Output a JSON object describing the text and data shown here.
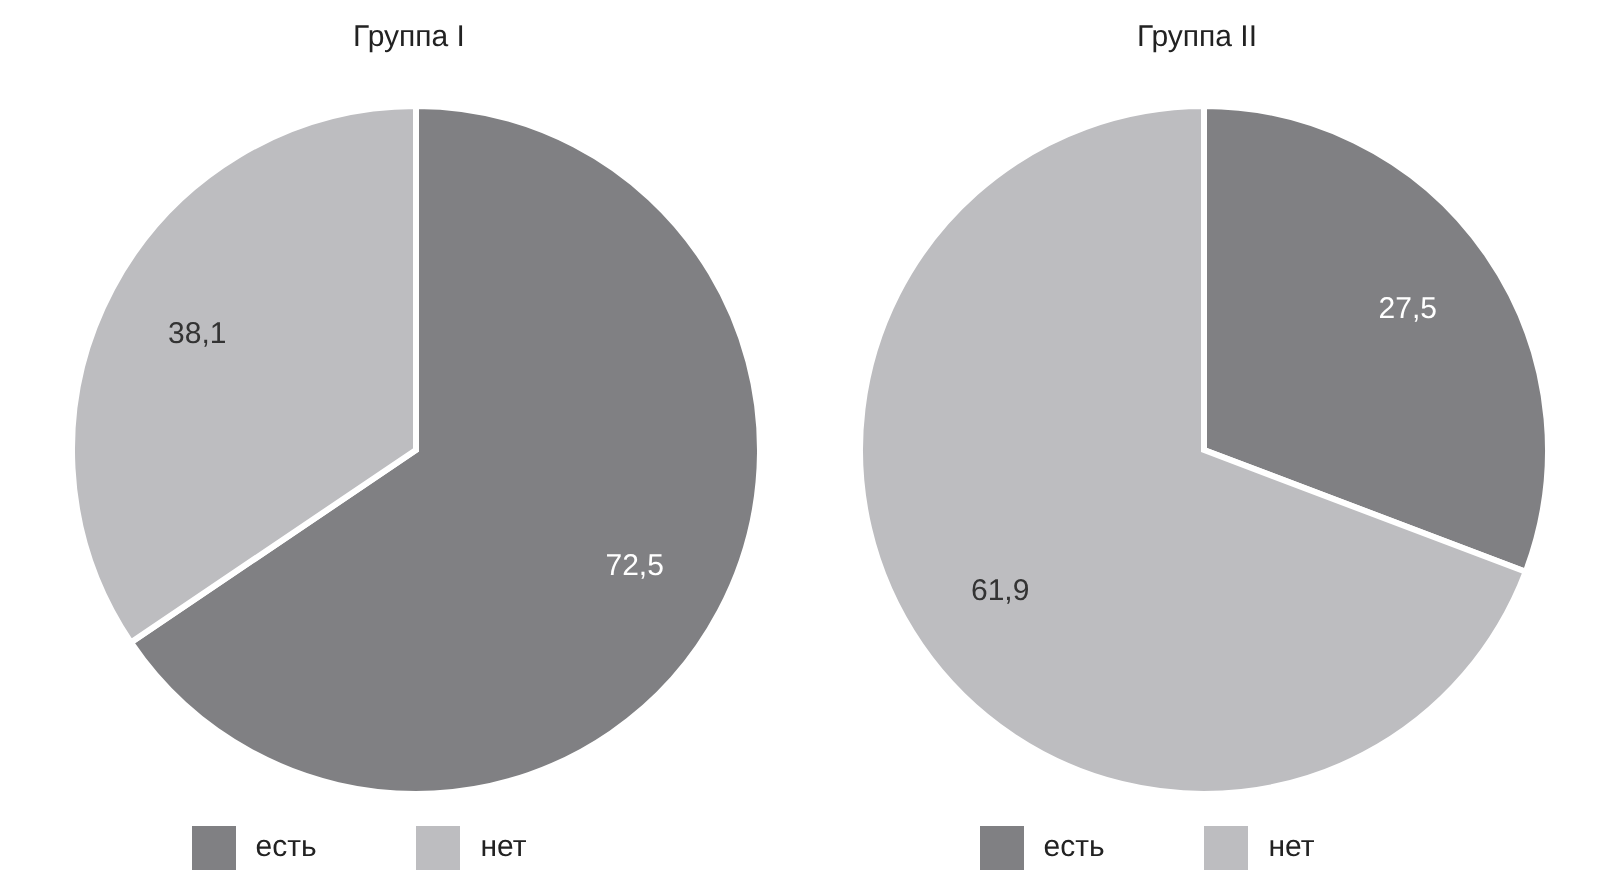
{
  "chart_data": [
    {
      "type": "pie",
      "title": "Группа I",
      "categories": [
        "есть",
        "нет"
      ],
      "values": [
        72.5,
        38.1
      ],
      "value_labels": [
        "72,5",
        "38,1"
      ],
      "colors": [
        "#808083",
        "#bdbdc0"
      ],
      "legend": "bottom"
    },
    {
      "type": "pie",
      "title": "Группа II",
      "categories": [
        "есть",
        "нет"
      ],
      "values": [
        27.5,
        61.9
      ],
      "value_labels": [
        "27,5",
        "61,9"
      ],
      "colors": [
        "#808083",
        "#bdbdc0"
      ],
      "legend": "bottom"
    }
  ]
}
